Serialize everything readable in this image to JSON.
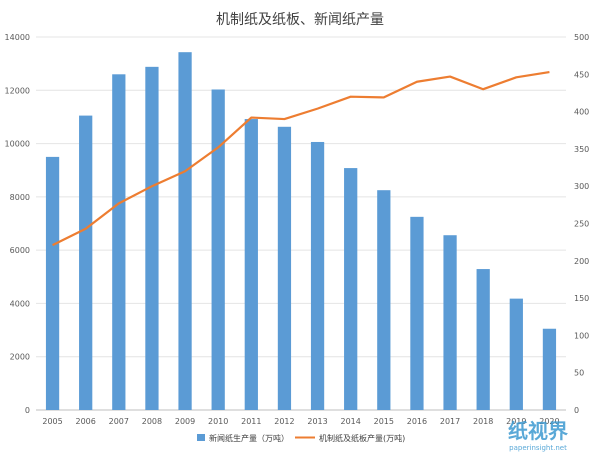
{
  "chart_data": {
    "type": "bar",
    "title": "机制纸及纸板、新闻纸产量",
    "categories": [
      "2005",
      "2006",
      "2007",
      "2008",
      "2009",
      "2010",
      "2011",
      "2012",
      "2013",
      "2014",
      "2015",
      "2016",
      "2017",
      "2018",
      "2019",
      "2020"
    ],
    "series": [
      {
        "name": "新闻纸生产量（万吨）",
        "type": "bar",
        "axis": "left",
        "color": "#5b9bd5",
        "values": [
          9500,
          11050,
          12600,
          12880,
          13430,
          12030,
          10920,
          10630,
          10060,
          9080,
          8250,
          7250,
          6560,
          5290,
          4180,
          3050
        ]
      },
      {
        "name": "机制纸及纸板产量(万吨)",
        "type": "line",
        "axis": "right",
        "color": "#ed7d31",
        "values": [
          221,
          243,
          277,
          300,
          320,
          352,
          392,
          390,
          404,
          420,
          419,
          440,
          447,
          430,
          446,
          453
        ]
      }
    ],
    "y_left": {
      "min": 0,
      "max": 14000,
      "ticks": [
        0,
        2000,
        4000,
        6000,
        8000,
        10000,
        12000,
        14000
      ]
    },
    "y_right": {
      "min": 0,
      "max": 500,
      "ticks": [
        0,
        50,
        100,
        150,
        200,
        250,
        300,
        350,
        400,
        450,
        500
      ]
    },
    "grid": true,
    "legend_position": "bottom"
  },
  "watermark": {
    "logo_text": "纸视界",
    "url_text": "paperinsight.net"
  }
}
